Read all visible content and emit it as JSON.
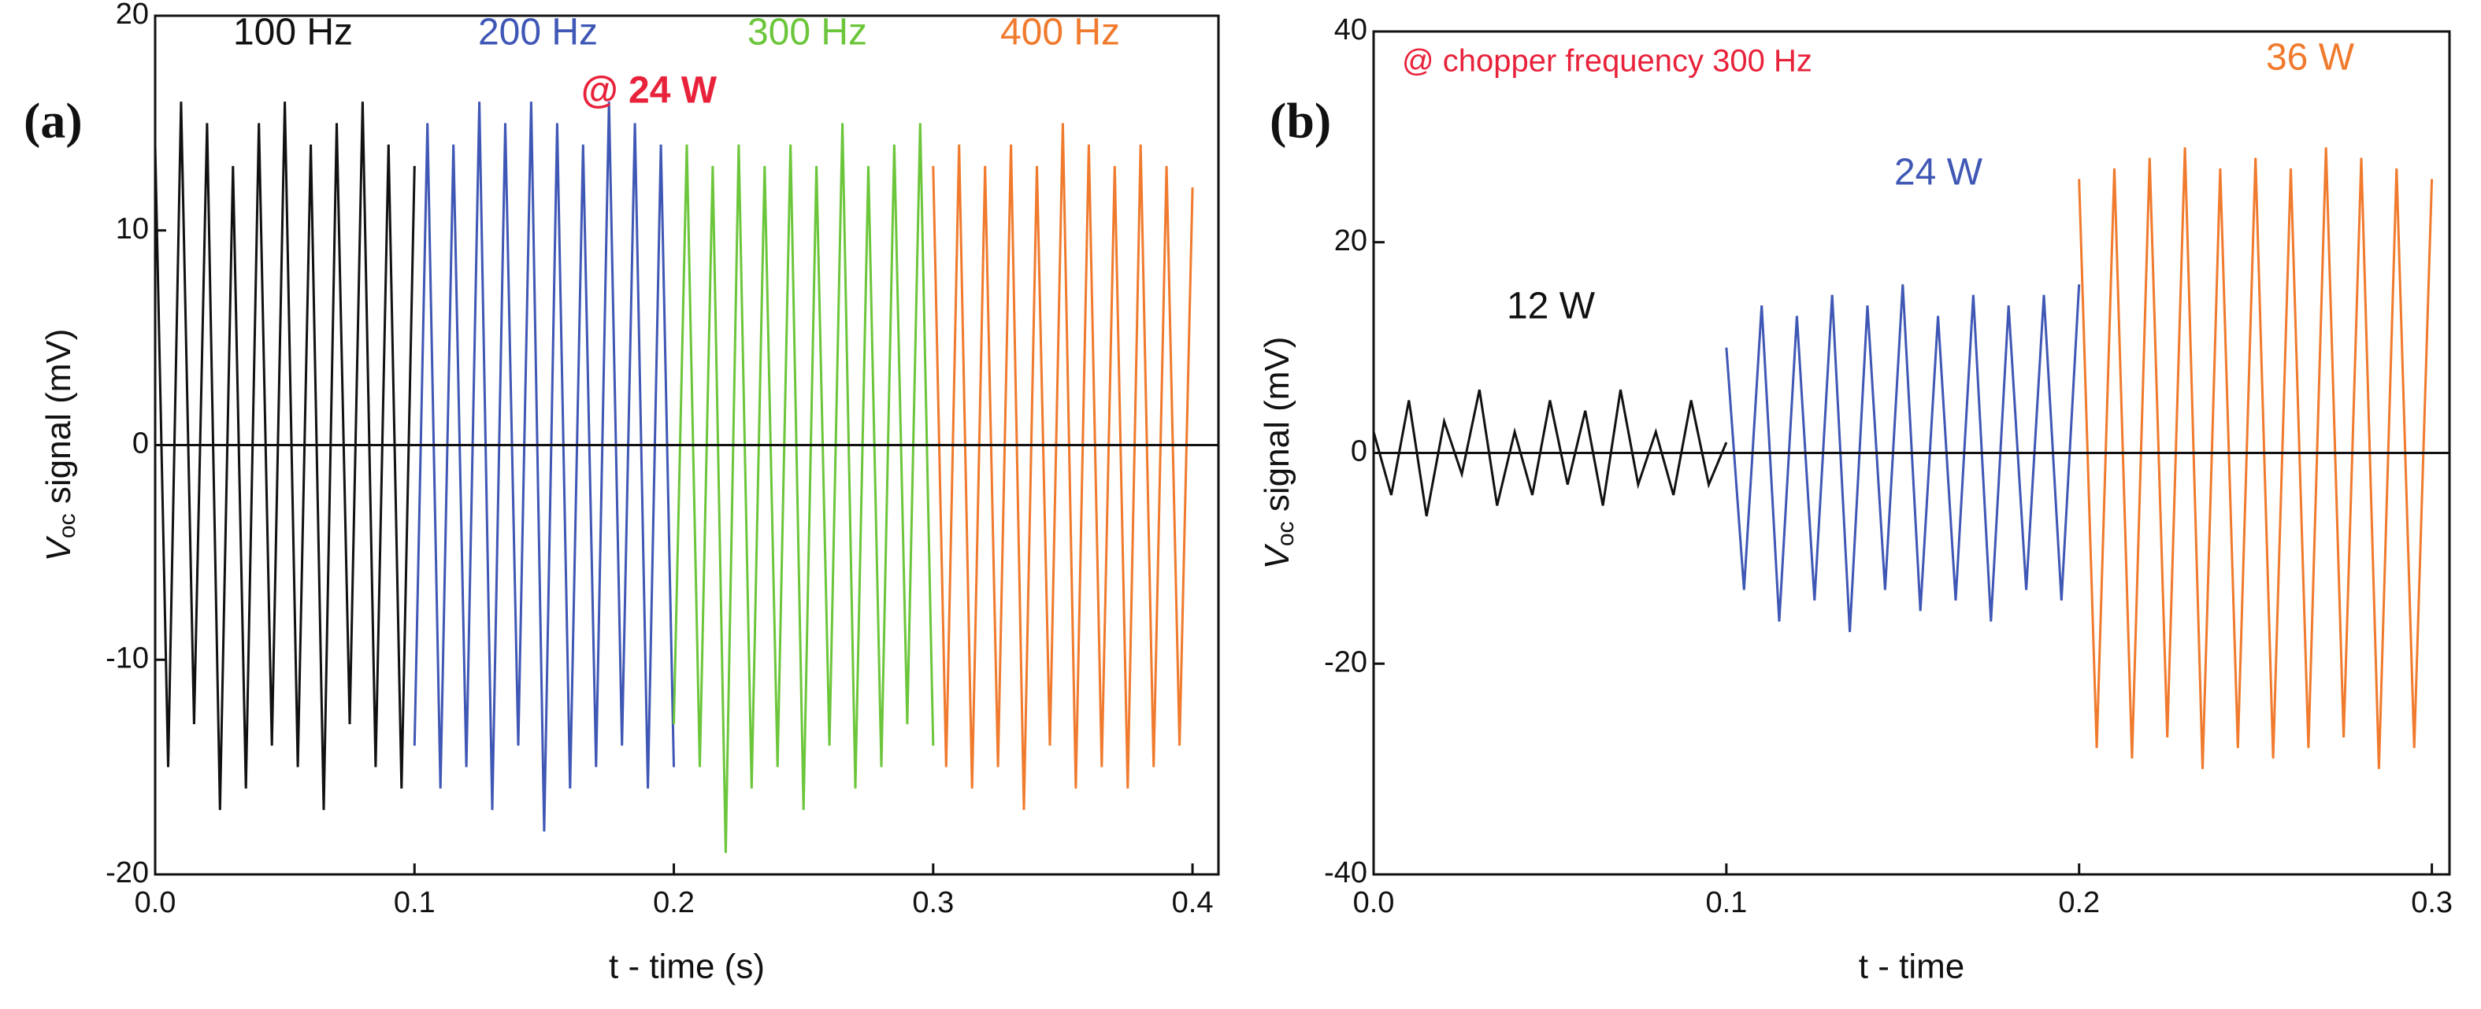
{
  "chart_data": [
    {
      "type": "line",
      "panel_label": "(a)",
      "x_label": "t - time (s)",
      "y_label": {
        "symbol": "V",
        "subscript": "oc",
        "text": " signal (mV)"
      },
      "xlim": [
        0,
        0.41
      ],
      "xticks": [
        {
          "value": 0,
          "label": "0.0"
        },
        0.1,
        0.2,
        0.3,
        0.4
      ],
      "ylim": [
        -20,
        20
      ],
      "yticks": [
        -20,
        -10,
        0,
        10,
        20
      ],
      "annotations": [
        {
          "text": "100 Hz",
          "color": "#111111"
        },
        {
          "text": "200 Hz",
          "color": "#3f57b5"
        },
        {
          "text": "300 Hz",
          "color": "#6cc63b"
        },
        {
          "text": "400 Hz",
          "color": "#f07a2d"
        },
        {
          "text": "@ 24 W",
          "color": "#e8223a"
        }
      ],
      "series": [
        {
          "color": "#111111",
          "x": [
            0,
            0.005,
            0.01,
            0.015,
            0.02,
            0.025,
            0.03,
            0.035,
            0.04,
            0.045,
            0.05,
            0.055,
            0.06,
            0.065,
            0.07,
            0.075,
            0.08,
            0.085,
            0.09,
            0.095,
            0.1
          ],
          "values": [
            14,
            -15,
            16,
            -13,
            15,
            -17,
            13,
            -16,
            15,
            -14,
            16,
            -15,
            14,
            -17,
            15,
            -13,
            16,
            -15,
            14,
            -16,
            13
          ]
        },
        {
          "color": "#3f57b5",
          "x": [
            0.1,
            0.105,
            0.11,
            0.115,
            0.12,
            0.125,
            0.13,
            0.135,
            0.14,
            0.145,
            0.15,
            0.155,
            0.16,
            0.165,
            0.17,
            0.175,
            0.18,
            0.185,
            0.19,
            0.195,
            0.2
          ],
          "values": [
            -14,
            15,
            -16,
            14,
            -15,
            16,
            -17,
            15,
            -14,
            16,
            -18,
            15,
            -16,
            14,
            -15,
            16,
            -14,
            15,
            -16,
            14,
            -15
          ]
        },
        {
          "color": "#6cc63b",
          "x": [
            0.2,
            0.205,
            0.21,
            0.215,
            0.22,
            0.225,
            0.23,
            0.235,
            0.24,
            0.245,
            0.25,
            0.255,
            0.26,
            0.265,
            0.27,
            0.275,
            0.28,
            0.285,
            0.29,
            0.295,
            0.3
          ],
          "values": [
            -13,
            14,
            -15,
            13,
            -19,
            14,
            -16,
            13,
            -15,
            14,
            -17,
            13,
            -14,
            15,
            -16,
            13,
            -15,
            14,
            -13,
            15,
            -14
          ]
        },
        {
          "color": "#f07a2d",
          "x": [
            0.3,
            0.305,
            0.31,
            0.315,
            0.32,
            0.325,
            0.33,
            0.335,
            0.34,
            0.345,
            0.35,
            0.355,
            0.36,
            0.365,
            0.37,
            0.375,
            0.38,
            0.385,
            0.39,
            0.395,
            0.4
          ],
          "values": [
            13,
            -15,
            14,
            -16,
            13,
            -15,
            14,
            -17,
            13,
            -14,
            15,
            -16,
            14,
            -15,
            13,
            -16,
            14,
            -15,
            13,
            -14,
            12
          ]
        }
      ]
    },
    {
      "type": "line",
      "panel_label": "(b)",
      "x_label": "t - time",
      "y_label": {
        "symbol": "V",
        "subscript": "oc",
        "text": " signal (mV)"
      },
      "xlim": [
        0,
        0.305
      ],
      "xticks": [
        {
          "value": 0,
          "label": "0.0"
        },
        0.1,
        0.2,
        0.3
      ],
      "ylim": [
        -40,
        40
      ],
      "yticks": [
        -40,
        -20,
        0,
        20,
        40
      ],
      "annotations": [
        {
          "text": "@ chopper frequency 300 Hz",
          "color": "#e8223a"
        },
        {
          "text": "36 W",
          "color": "#f07a2d"
        },
        {
          "text": "24 W",
          "color": "#3f57b5"
        },
        {
          "text": "12 W",
          "color": "#111111"
        }
      ],
      "series": [
        {
          "color": "#111111",
          "x": [
            0,
            0.005,
            0.01,
            0.015,
            0.02,
            0.025,
            0.03,
            0.035,
            0.04,
            0.045,
            0.05,
            0.055,
            0.06,
            0.065,
            0.07,
            0.075,
            0.08,
            0.085,
            0.09,
            0.095,
            0.1
          ],
          "values": [
            2,
            -4,
            5,
            -6,
            3,
            -2,
            6,
            -5,
            2,
            -4,
            5,
            -3,
            4,
            -5,
            6,
            -3,
            2,
            -4,
            5,
            -3,
            1
          ]
        },
        {
          "color": "#3f57b5",
          "x": [
            0.1,
            0.105,
            0.11,
            0.115,
            0.12,
            0.125,
            0.13,
            0.135,
            0.14,
            0.145,
            0.15,
            0.155,
            0.16,
            0.165,
            0.17,
            0.175,
            0.18,
            0.185,
            0.19,
            0.195,
            0.2
          ],
          "values": [
            10,
            -13,
            14,
            -16,
            13,
            -14,
            15,
            -17,
            14,
            -13,
            16,
            -15,
            13,
            -14,
            15,
            -16,
            14,
            -13,
            15,
            -14,
            16
          ]
        },
        {
          "color": "#f07a2d",
          "x": [
            0.2,
            0.205,
            0.21,
            0.215,
            0.22,
            0.225,
            0.23,
            0.235,
            0.24,
            0.245,
            0.25,
            0.255,
            0.26,
            0.265,
            0.27,
            0.275,
            0.28,
            0.285,
            0.29,
            0.295,
            0.3
          ],
          "values": [
            26,
            -28,
            27,
            -29,
            28,
            -27,
            29,
            -30,
            27,
            -28,
            28,
            -29,
            27,
            -28,
            29,
            -27,
            28,
            -30,
            27,
            -28,
            26
          ]
        }
      ]
    }
  ]
}
